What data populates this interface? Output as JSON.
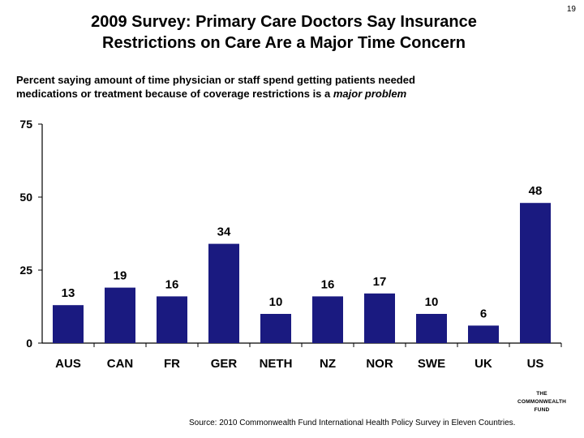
{
  "slide_number": "19",
  "title_line1": "2009 Survey: Primary Care Doctors Say Insurance",
  "title_line2": "Restrictions on Care Are a Major Time Concern",
  "subtitle_line1": "Percent saying amount of time physician or staff spend getting patients needed",
  "subtitle_line2_pre": "medications or treatment because of coverage restrictions is a ",
  "subtitle_line2_em": "major problem",
  "source": "Source: 2010 Commonwealth Fund International Health Policy Survey in Eleven Countries.",
  "logo": {
    "line1": "THE",
    "line2": "COMMONWEALTH",
    "line3": "FUND"
  },
  "colors": {
    "bar": "#1a1a80",
    "axis": "#000000"
  },
  "chart_data": {
    "type": "bar",
    "categories": [
      "AUS",
      "CAN",
      "FR",
      "GER",
      "NETH",
      "NZ",
      "NOR",
      "SWE",
      "UK",
      "US"
    ],
    "values": [
      13,
      19,
      16,
      34,
      10,
      16,
      17,
      10,
      6,
      48
    ],
    "ylim": [
      0,
      75
    ],
    "yticks": [
      0,
      25,
      50,
      75
    ],
    "title": "",
    "xlabel": "",
    "ylabel": ""
  }
}
